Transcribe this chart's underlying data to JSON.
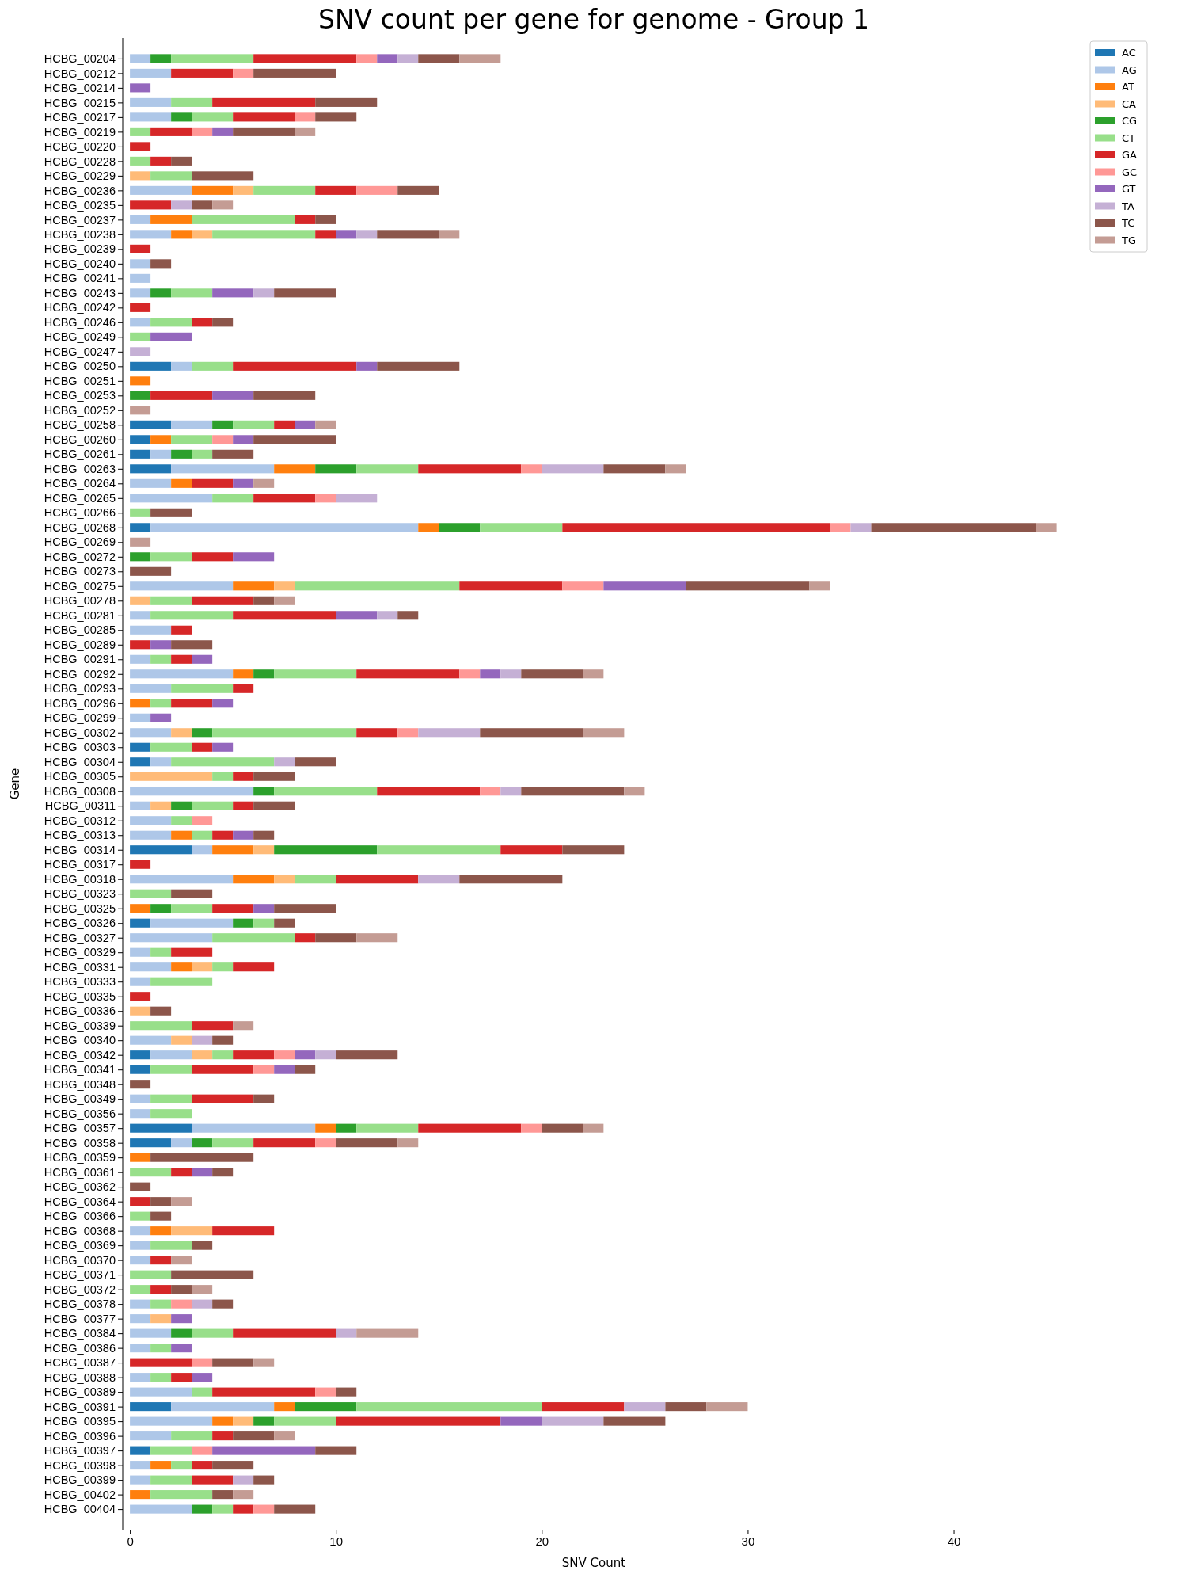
{
  "chart_data": {
    "type": "bar",
    "orientation": "horizontal",
    "stacked": true,
    "title": "SNV count per gene for genome - Group 1",
    "xlabel": "SNV Count",
    "ylabel": "Gene",
    "categories": [
      "HCBG_00204",
      "HCBG_00212",
      "HCBG_00214",
      "HCBG_00215",
      "HCBG_00217",
      "HCBG_00219",
      "HCBG_00220",
      "HCBG_00228",
      "HCBG_00229",
      "HCBG_00236",
      "HCBG_00235",
      "HCBG_00237",
      "HCBG_00238",
      "HCBG_00239",
      "HCBG_00240",
      "HCBG_00241",
      "HCBG_00243",
      "HCBG_00242",
      "HCBG_00246",
      "HCBG_00249",
      "HCBG_00247",
      "HCBG_00250",
      "HCBG_00251",
      "HCBG_00253",
      "HCBG_00252",
      "HCBG_00258",
      "HCBG_00260",
      "HCBG_00261",
      "HCBG_00263",
      "HCBG_00264",
      "HCBG_00265",
      "HCBG_00266",
      "HCBG_00268",
      "HCBG_00269",
      "HCBG_00272",
      "HCBG_00273",
      "HCBG_00275",
      "HCBG_00278",
      "HCBG_00281",
      "HCBG_00285",
      "HCBG_00289",
      "HCBG_00291",
      "HCBG_00292",
      "HCBG_00293",
      "HCBG_00296",
      "HCBG_00299",
      "HCBG_00302",
      "HCBG_00303",
      "HCBG_00304",
      "HCBG_00305",
      "HCBG_00308",
      "HCBG_00311",
      "HCBG_00312",
      "HCBG_00313",
      "HCBG_00314",
      "HCBG_00317",
      "HCBG_00318",
      "HCBG_00323",
      "HCBG_00325",
      "HCBG_00326",
      "HCBG_00327",
      "HCBG_00329",
      "HCBG_00331",
      "HCBG_00333",
      "HCBG_00335",
      "HCBG_00336",
      "HCBG_00339",
      "HCBG_00340",
      "HCBG_00342",
      "HCBG_00341",
      "HCBG_00348",
      "HCBG_00349",
      "HCBG_00356",
      "HCBG_00357",
      "HCBG_00358",
      "HCBG_00359",
      "HCBG_00361",
      "HCBG_00362",
      "HCBG_00364",
      "HCBG_00366",
      "HCBG_00368",
      "HCBG_00369",
      "HCBG_00370",
      "HCBG_00371",
      "HCBG_00372",
      "HCBG_00378",
      "HCBG_00377",
      "HCBG_00384",
      "HCBG_00386",
      "HCBG_00387",
      "HCBG_00388",
      "HCBG_00389",
      "HCBG_00391",
      "HCBG_00395",
      "HCBG_00396",
      "HCBG_00397",
      "HCBG_00398",
      "HCBG_00399",
      "HCBG_00402",
      "HCBG_00404"
    ],
    "series": [
      {
        "name": "AC",
        "color": "#1f77b4",
        "values": [
          0,
          0,
          0,
          0,
          0,
          0,
          0,
          0,
          0,
          0,
          0,
          0,
          0,
          0,
          0,
          0,
          0,
          0,
          0,
          0,
          0,
          2,
          0,
          0,
          0,
          2,
          1,
          1,
          2,
          0,
          0,
          0,
          1,
          0,
          0,
          0,
          0,
          0,
          0,
          0,
          0,
          0,
          0,
          0,
          0,
          0,
          0,
          1,
          1,
          0,
          0,
          0,
          0,
          0,
          3,
          0,
          0,
          0,
          0,
          1,
          0,
          0,
          0,
          0,
          0,
          0,
          0,
          0,
          1,
          1,
          0,
          0,
          0,
          3,
          2,
          0,
          0,
          0,
          0,
          0,
          0,
          0,
          0,
          0,
          0,
          0,
          0,
          0,
          0,
          0,
          0,
          0,
          2,
          0,
          0,
          1,
          0,
          0,
          0,
          0
        ]
      },
      {
        "name": "AG",
        "color": "#aec7e8",
        "values": [
          1,
          2,
          0,
          2,
          2,
          0,
          0,
          0,
          0,
          3,
          0,
          1,
          2,
          0,
          1,
          1,
          1,
          0,
          1,
          0,
          0,
          1,
          0,
          0,
          0,
          2,
          0,
          1,
          5,
          2,
          4,
          0,
          13,
          0,
          0,
          0,
          5,
          0,
          1,
          2,
          0,
          1,
          5,
          2,
          0,
          1,
          2,
          0,
          1,
          0,
          6,
          1,
          2,
          2,
          1,
          0,
          5,
          0,
          0,
          4,
          4,
          1,
          2,
          1,
          0,
          0,
          0,
          2,
          2,
          0,
          0,
          1,
          1,
          6,
          1,
          0,
          0,
          0,
          0,
          0,
          1,
          1,
          1,
          0,
          0,
          1,
          1,
          2,
          1,
          0,
          1,
          3,
          5,
          4,
          2,
          0,
          1,
          1,
          0,
          3
        ]
      },
      {
        "name": "AT",
        "color": "#ff7f0e",
        "values": [
          0,
          0,
          0,
          0,
          0,
          0,
          0,
          0,
          0,
          2,
          0,
          2,
          1,
          0,
          0,
          0,
          0,
          0,
          0,
          0,
          0,
          0,
          1,
          0,
          0,
          0,
          1,
          0,
          2,
          1,
          0,
          0,
          1,
          0,
          0,
          0,
          2,
          0,
          0,
          0,
          0,
          0,
          1,
          0,
          1,
          0,
          0,
          0,
          0,
          0,
          0,
          0,
          0,
          1,
          2,
          0,
          2,
          0,
          1,
          0,
          0,
          0,
          1,
          0,
          0,
          0,
          0,
          0,
          0,
          0,
          0,
          0,
          0,
          1,
          0,
          1,
          0,
          0,
          0,
          0,
          1,
          0,
          0,
          0,
          0,
          0,
          0,
          0,
          0,
          0,
          0,
          0,
          1,
          1,
          0,
          0,
          1,
          0,
          1,
          0
        ]
      },
      {
        "name": "CA",
        "color": "#ffbb78",
        "values": [
          0,
          0,
          0,
          0,
          0,
          0,
          0,
          0,
          1,
          1,
          0,
          0,
          1,
          0,
          0,
          0,
          0,
          0,
          0,
          0,
          0,
          0,
          0,
          0,
          0,
          0,
          0,
          0,
          0,
          0,
          0,
          0,
          0,
          0,
          0,
          0,
          1,
          1,
          0,
          0,
          0,
          0,
          0,
          0,
          0,
          0,
          1,
          0,
          0,
          4,
          0,
          1,
          0,
          0,
          1,
          0,
          1,
          0,
          0,
          0,
          0,
          0,
          1,
          0,
          0,
          1,
          0,
          1,
          1,
          0,
          0,
          0,
          0,
          0,
          0,
          0,
          0,
          0,
          0,
          0,
          2,
          0,
          0,
          0,
          0,
          0,
          1,
          0,
          0,
          0,
          0,
          0,
          0,
          1,
          0,
          0,
          0,
          0,
          0,
          0
        ]
      },
      {
        "name": "CG",
        "color": "#2ca02c",
        "values": [
          1,
          0,
          0,
          0,
          1,
          0,
          0,
          0,
          0,
          0,
          0,
          0,
          0,
          0,
          0,
          0,
          1,
          0,
          0,
          0,
          0,
          0,
          0,
          1,
          0,
          1,
          0,
          1,
          2,
          0,
          0,
          0,
          2,
          0,
          1,
          0,
          0,
          0,
          0,
          0,
          0,
          0,
          1,
          0,
          0,
          0,
          1,
          0,
          0,
          0,
          1,
          1,
          0,
          0,
          5,
          0,
          0,
          0,
          1,
          1,
          0,
          0,
          0,
          0,
          0,
          0,
          0,
          0,
          0,
          0,
          0,
          0,
          0,
          1,
          1,
          0,
          0,
          0,
          0,
          0,
          0,
          0,
          0,
          0,
          0,
          0,
          0,
          1,
          0,
          0,
          0,
          0,
          3,
          1,
          0,
          0,
          0,
          0,
          0,
          1
        ]
      },
      {
        "name": "CT",
        "color": "#98df8a",
        "values": [
          4,
          0,
          0,
          2,
          2,
          1,
          0,
          1,
          2,
          3,
          0,
          5,
          5,
          0,
          0,
          0,
          2,
          0,
          2,
          1,
          0,
          2,
          0,
          0,
          0,
          2,
          2,
          1,
          3,
          0,
          2,
          1,
          4,
          0,
          2,
          0,
          8,
          2,
          4,
          0,
          0,
          1,
          4,
          3,
          1,
          0,
          7,
          2,
          5,
          1,
          5,
          2,
          1,
          1,
          6,
          0,
          2,
          2,
          2,
          1,
          4,
          1,
          1,
          3,
          0,
          0,
          3,
          0,
          1,
          2,
          0,
          2,
          2,
          3,
          2,
          0,
          2,
          0,
          0,
          1,
          0,
          2,
          0,
          2,
          1,
          1,
          0,
          2,
          1,
          0,
          1,
          1,
          9,
          3,
          2,
          2,
          1,
          2,
          3,
          1
        ]
      },
      {
        "name": "GA",
        "color": "#d62728",
        "values": [
          5,
          3,
          0,
          5,
          3,
          2,
          1,
          1,
          0,
          2,
          2,
          1,
          1,
          1,
          0,
          0,
          0,
          1,
          1,
          0,
          0,
          6,
          0,
          3,
          0,
          1,
          0,
          0,
          5,
          2,
          3,
          0,
          13,
          0,
          2,
          0,
          5,
          3,
          5,
          1,
          1,
          1,
          5,
          1,
          2,
          0,
          2,
          1,
          0,
          1,
          5,
          1,
          0,
          1,
          3,
          1,
          4,
          0,
          2,
          0,
          1,
          2,
          2,
          0,
          1,
          0,
          2,
          0,
          2,
          3,
          0,
          3,
          0,
          5,
          3,
          0,
          1,
          0,
          1,
          0,
          3,
          0,
          1,
          0,
          1,
          0,
          0,
          5,
          0,
          3,
          1,
          5,
          4,
          8,
          1,
          0,
          1,
          2,
          0,
          1
        ]
      },
      {
        "name": "GC",
        "color": "#ff9896",
        "values": [
          1,
          1,
          0,
          0,
          1,
          1,
          0,
          0,
          0,
          2,
          0,
          0,
          0,
          0,
          0,
          0,
          0,
          0,
          0,
          0,
          0,
          0,
          0,
          0,
          0,
          0,
          1,
          0,
          1,
          0,
          1,
          0,
          1,
          0,
          0,
          0,
          2,
          0,
          0,
          0,
          0,
          0,
          1,
          0,
          0,
          0,
          1,
          0,
          0,
          0,
          1,
          0,
          1,
          0,
          0,
          0,
          0,
          0,
          0,
          0,
          0,
          0,
          0,
          0,
          0,
          0,
          0,
          0,
          1,
          1,
          0,
          0,
          0,
          1,
          1,
          0,
          0,
          0,
          0,
          0,
          0,
          0,
          0,
          0,
          0,
          1,
          0,
          0,
          0,
          1,
          0,
          1,
          0,
          0,
          0,
          1,
          0,
          0,
          0,
          1
        ]
      },
      {
        "name": "GT",
        "color": "#9467bd",
        "values": [
          1,
          0,
          1,
          0,
          0,
          1,
          0,
          0,
          0,
          0,
          0,
          0,
          1,
          0,
          0,
          0,
          2,
          0,
          0,
          2,
          0,
          1,
          0,
          2,
          0,
          1,
          1,
          0,
          0,
          1,
          0,
          0,
          0,
          0,
          2,
          0,
          4,
          0,
          2,
          0,
          1,
          1,
          1,
          0,
          1,
          1,
          0,
          1,
          0,
          0,
          0,
          0,
          0,
          1,
          0,
          0,
          0,
          0,
          1,
          0,
          0,
          0,
          0,
          0,
          0,
          0,
          0,
          0,
          1,
          1,
          0,
          0,
          0,
          0,
          0,
          0,
          1,
          0,
          0,
          0,
          0,
          0,
          0,
          0,
          0,
          0,
          1,
          0,
          1,
          0,
          1,
          0,
          0,
          2,
          0,
          5,
          0,
          0,
          0,
          0
        ]
      },
      {
        "name": "TA",
        "color": "#c5b0d5",
        "values": [
          1,
          0,
          0,
          0,
          0,
          0,
          0,
          0,
          0,
          0,
          1,
          0,
          1,
          0,
          0,
          0,
          1,
          0,
          0,
          0,
          1,
          0,
          0,
          0,
          0,
          0,
          0,
          0,
          3,
          0,
          2,
          0,
          1,
          0,
          0,
          0,
          0,
          0,
          1,
          0,
          0,
          0,
          1,
          0,
          0,
          0,
          3,
          0,
          1,
          0,
          1,
          0,
          0,
          0,
          0,
          0,
          2,
          0,
          0,
          0,
          0,
          0,
          0,
          0,
          0,
          0,
          0,
          1,
          1,
          0,
          0,
          0,
          0,
          0,
          0,
          0,
          0,
          0,
          0,
          0,
          0,
          0,
          0,
          0,
          0,
          1,
          0,
          1,
          0,
          0,
          0,
          0,
          2,
          3,
          0,
          0,
          0,
          1,
          0,
          0
        ]
      },
      {
        "name": "TC",
        "color": "#8c564b",
        "values": [
          2,
          4,
          0,
          3,
          2,
          3,
          0,
          1,
          3,
          2,
          1,
          1,
          3,
          0,
          1,
          0,
          3,
          0,
          1,
          0,
          0,
          4,
          0,
          3,
          0,
          0,
          4,
          2,
          3,
          0,
          0,
          2,
          8,
          0,
          0,
          2,
          6,
          1,
          1,
          0,
          2,
          0,
          3,
          0,
          0,
          0,
          5,
          0,
          2,
          2,
          5,
          2,
          0,
          1,
          3,
          0,
          5,
          2,
          3,
          1,
          2,
          0,
          0,
          0,
          0,
          1,
          0,
          1,
          3,
          1,
          1,
          1,
          0,
          2,
          3,
          5,
          1,
          1,
          1,
          1,
          0,
          1,
          0,
          4,
          1,
          1,
          0,
          0,
          0,
          2,
          0,
          1,
          2,
          3,
          2,
          2,
          2,
          1,
          1,
          2
        ]
      },
      {
        "name": "TG",
        "color": "#c49c94",
        "values": [
          2,
          0,
          0,
          0,
          0,
          1,
          0,
          0,
          0,
          0,
          1,
          0,
          1,
          0,
          0,
          0,
          0,
          0,
          0,
          0,
          0,
          0,
          0,
          0,
          1,
          1,
          0,
          0,
          1,
          1,
          0,
          0,
          1,
          1,
          0,
          0,
          1,
          1,
          0,
          0,
          0,
          0,
          1,
          0,
          0,
          0,
          2,
          0,
          0,
          0,
          1,
          0,
          0,
          0,
          0,
          0,
          0,
          0,
          0,
          0,
          2,
          0,
          0,
          0,
          0,
          0,
          1,
          0,
          0,
          0,
          0,
          0,
          0,
          1,
          1,
          0,
          0,
          0,
          1,
          0,
          0,
          0,
          1,
          0,
          1,
          0,
          0,
          3,
          0,
          1,
          0,
          0,
          2,
          0,
          1,
          0,
          0,
          0,
          1,
          0
        ]
      }
    ],
    "xlim": [
      -0.35,
      45.4
    ],
    "xticks": [
      0,
      10,
      20,
      30,
      40
    ],
    "legend": "top right",
    "grid": false
  }
}
